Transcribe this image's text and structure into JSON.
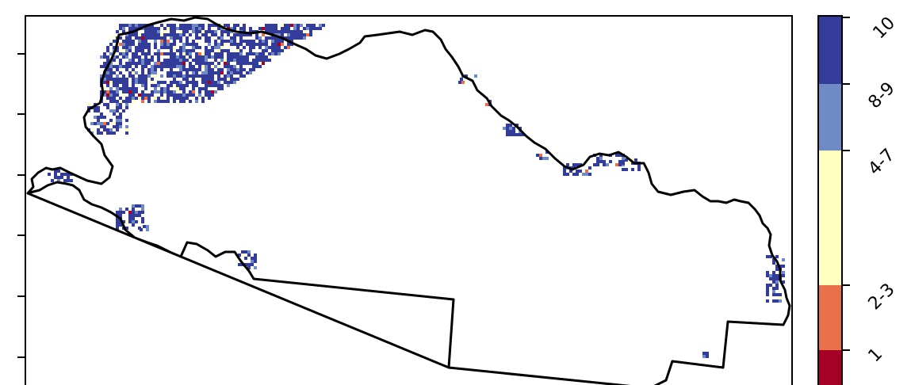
{
  "map": {
    "boundary_color": "#000000",
    "pixel_color_cluster_main": "#333c99",
    "pixel_color_light_blue": "#6f8ac4",
    "pixel_color_cream": "#ffffbf",
    "pixel_color_red": "#a50026",
    "pixel_color_orange": "#e8704a"
  },
  "legend": {
    "classes": [
      {
        "label": "10",
        "color": "#333c99"
      },
      {
        "label": "8-9",
        "color": "#6f8ac4"
      },
      {
        "label": "4-7",
        "color": "#ffffbf"
      },
      {
        "label": "2-3",
        "color": "#e8704a"
      },
      {
        "label": "1",
        "color": "#a50026"
      }
    ]
  }
}
